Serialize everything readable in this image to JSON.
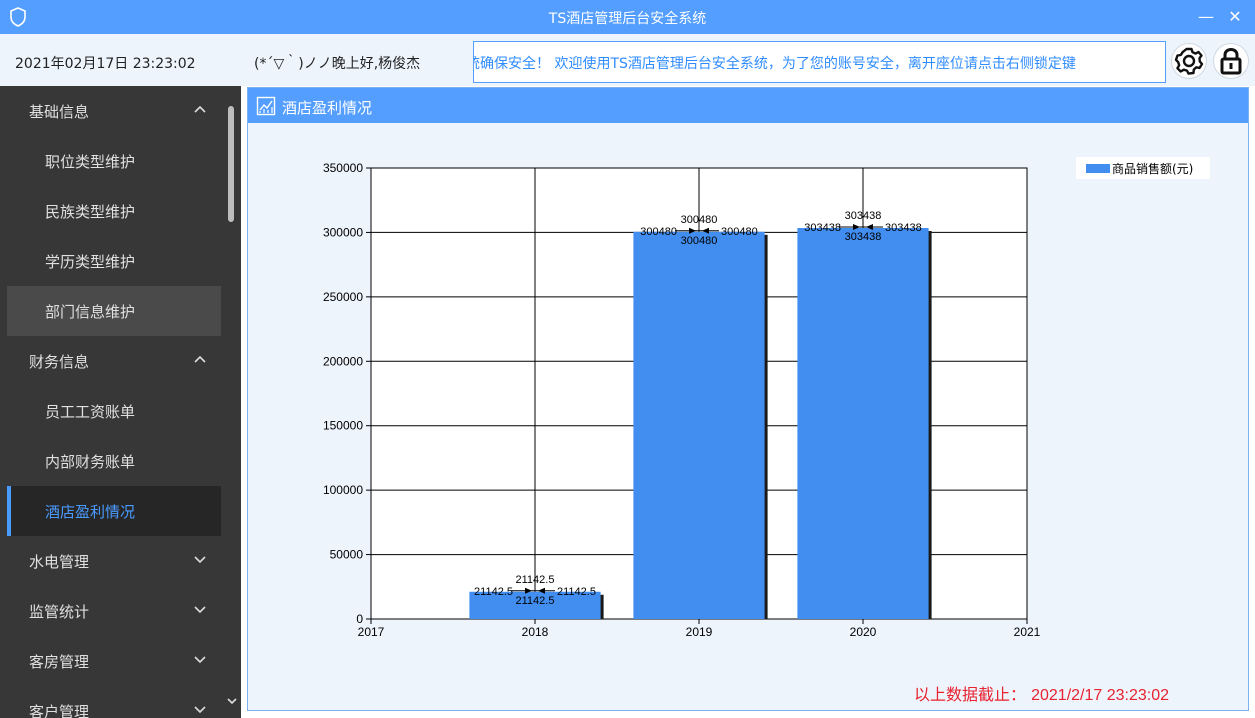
{
  "window": {
    "title": "TS酒店管理后台安全系统",
    "minimize_glyph": "—",
    "close_glyph": "✕"
  },
  "header": {
    "datetime": "2021年02月17日 23:23:02",
    "greeting": "(*´▽｀)ノノ晚上好,杨俊杰",
    "marquee": "统确保安全！ 欢迎使用TS酒店管理后台安全系统，为了您的账号安全，离开座位请点击右侧锁定键"
  },
  "sidebar": {
    "items": [
      {
        "label": "基础信息",
        "kind": "group",
        "chevron": "up"
      },
      {
        "label": "职位类型维护",
        "kind": "sub"
      },
      {
        "label": "民族类型维护",
        "kind": "sub"
      },
      {
        "label": "学历类型维护",
        "kind": "sub"
      },
      {
        "label": "部门信息维护",
        "kind": "sub",
        "state": "hover"
      },
      {
        "label": "财务信息",
        "kind": "group",
        "chevron": "up"
      },
      {
        "label": "员工工资账单",
        "kind": "sub"
      },
      {
        "label": "内部财务账单",
        "kind": "sub"
      },
      {
        "label": "酒店盈利情况",
        "kind": "sub",
        "state": "active"
      },
      {
        "label": "水电管理",
        "kind": "group",
        "chevron": "down"
      },
      {
        "label": "监管统计",
        "kind": "group",
        "chevron": "down"
      },
      {
        "label": "客房管理",
        "kind": "group",
        "chevron": "down"
      },
      {
        "label": "客户管理",
        "kind": "group",
        "chevron": "down"
      }
    ]
  },
  "panel": {
    "title": "酒店盈利情况"
  },
  "chart_data": {
    "type": "bar",
    "categories": [
      "2018",
      "2019",
      "2020"
    ],
    "x": [
      2018,
      2019,
      2020
    ],
    "series": [
      {
        "name": "商品销售额(元)",
        "values": [
          21142.5,
          300480,
          303438
        ],
        "value_labels": [
          "21142.5",
          "300480",
          "303438"
        ],
        "color": "#418ef0"
      }
    ],
    "x_ticks": [
      "2017",
      "2018",
      "2019",
      "2020",
      "2021"
    ],
    "xlim": [
      2017,
      2021
    ],
    "y_ticks": [
      "0",
      "50000",
      "100000",
      "150000",
      "200000",
      "250000",
      "300000",
      "350000"
    ],
    "ylim": [
      0,
      350000
    ],
    "grid": true,
    "legend_position": "top-right"
  },
  "footer": {
    "label": "以上数据截止：",
    "timestamp": "2021/2/17 23:23:02"
  },
  "colors": {
    "accent": "#539eff",
    "sidebar_bg": "#373737",
    "active_text": "#4a9bff",
    "bar": "#418ef0",
    "footer_text": "#e8222e"
  }
}
